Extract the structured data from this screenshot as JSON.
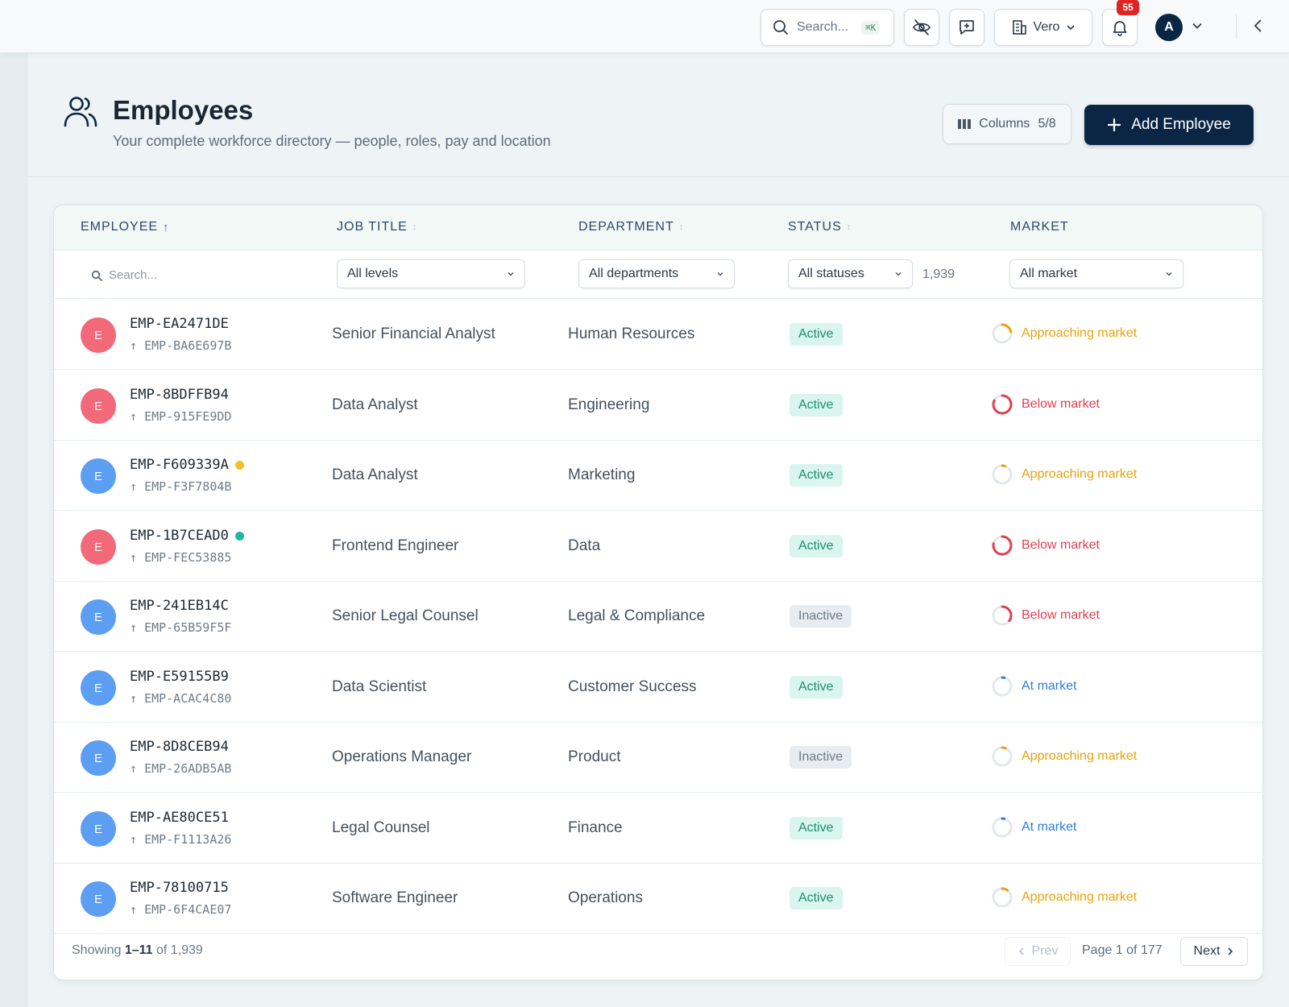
{
  "topbar": {
    "search_placeholder": "Search...",
    "search_shortcut": "⌘K",
    "org_name": "Vero",
    "notification_count": "55",
    "user_initial": "A"
  },
  "header": {
    "title": "Employees",
    "subtitle": "Your complete workforce directory — people, roles, pay and location",
    "columns_label": "Columns",
    "columns_count": "5/8",
    "add_label": "Add Employee"
  },
  "table": {
    "headers": {
      "employee": "EMPLOYEE",
      "job_title": "JOB TITLE",
      "department": "DEPARTMENT",
      "status": "STATUS",
      "market": "MARKET"
    },
    "filters": {
      "search_placeholder": "Search...",
      "levels": "All levels",
      "departments": "All departments",
      "statuses": "All statuses",
      "count": "1,939",
      "market": "All market"
    },
    "rows": [
      {
        "initial": "E",
        "avatar_color": "#f2697a",
        "id": "EMP-EA2471DE",
        "manager": "EMP-BA6E697B",
        "dot": "",
        "title": "Senior Financial Analyst",
        "department": "Human Resources",
        "status": "Active",
        "market": "Approaching market",
        "market_type": "approaching",
        "market_fill": 0.22
      },
      {
        "initial": "E",
        "avatar_color": "#f2697a",
        "id": "EMP-8BDFFB94",
        "manager": "EMP-915FE9DD",
        "dot": "",
        "title": "Data Analyst",
        "department": "Engineering",
        "status": "Active",
        "market": "Below market",
        "market_type": "below",
        "market_fill": 0.82
      },
      {
        "initial": "E",
        "avatar_color": "#5b9ef2",
        "id": "EMP-F609339A",
        "manager": "EMP-F3F7804B",
        "dot": "#f4c02a",
        "title": "Data Analyst",
        "department": "Marketing",
        "status": "Active",
        "market": "Approaching market",
        "market_type": "approaching",
        "market_fill": 0.05
      },
      {
        "initial": "E",
        "avatar_color": "#f2697a",
        "id": "EMP-1B7CEAD0",
        "manager": "EMP-FEC53885",
        "dot": "#1fb89a",
        "title": "Frontend Engineer",
        "department": "Data",
        "status": "Active",
        "market": "Below market",
        "market_type": "below",
        "market_fill": 0.78
      },
      {
        "initial": "E",
        "avatar_color": "#5b9ef2",
        "id": "EMP-241EB14C",
        "manager": "EMP-65B59F5F",
        "dot": "",
        "title": "Senior Legal Counsel",
        "department": "Legal & Compliance",
        "status": "Inactive",
        "market": "Below market",
        "market_type": "below",
        "market_fill": 0.35
      },
      {
        "initial": "E",
        "avatar_color": "#5b9ef2",
        "id": "EMP-E59155B9",
        "manager": "EMP-ACAC4C80",
        "dot": "",
        "title": "Data Scientist",
        "department": "Customer Success",
        "status": "Active",
        "market": "At market",
        "market_type": "at",
        "market_fill": 0.04
      },
      {
        "initial": "E",
        "avatar_color": "#5b9ef2",
        "id": "EMP-8D8CEB94",
        "manager": "EMP-26ADB5AB",
        "dot": "",
        "title": "Operations Manager",
        "department": "Product",
        "status": "Inactive",
        "market": "Approaching market",
        "market_type": "approaching",
        "market_fill": 0.06
      },
      {
        "initial": "E",
        "avatar_color": "#5b9ef2",
        "id": "EMP-AE80CE51",
        "manager": "EMP-F1113A26",
        "dot": "",
        "title": "Legal Counsel",
        "department": "Finance",
        "status": "Active",
        "market": "At market",
        "market_type": "at",
        "market_fill": 0.04
      },
      {
        "initial": "E",
        "avatar_color": "#5b9ef2",
        "id": "EMP-78100715",
        "manager": "EMP-6F4CAE07",
        "dot": "",
        "title": "Software Engineer",
        "department": "Operations",
        "status": "Active",
        "market": "Approaching market",
        "market_type": "approaching",
        "market_fill": 0.1
      }
    ]
  },
  "footer": {
    "showing_prefix": "Showing",
    "showing_range": "1–11",
    "showing_suffix": "of 1,939",
    "prev": "Prev",
    "page_text": "Page 1 of 177",
    "next": "Next"
  },
  "colors": {
    "primary": "#0b2545",
    "active_text": "#1f8f6e",
    "approaching": "#e8a20c",
    "below": "#e0404f",
    "at": "#2f7fd8"
  }
}
